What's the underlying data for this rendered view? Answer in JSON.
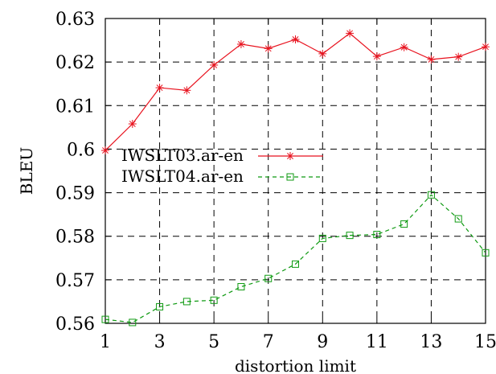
{
  "chart_data": {
    "type": "line",
    "xlabel": "distortion limit",
    "ylabel": "BLEU",
    "xlim": [
      1,
      15
    ],
    "ylim": [
      0.56,
      0.63
    ],
    "xticks": [
      1,
      3,
      5,
      7,
      9,
      11,
      13,
      15
    ],
    "xtick_labels": [
      "1",
      "3",
      "5",
      "7",
      "9",
      "11",
      "13",
      "15"
    ],
    "yticks": [
      0.56,
      0.57,
      0.58,
      0.59,
      0.6,
      0.61,
      0.62,
      0.63
    ],
    "ytick_labels": [
      "0.56",
      "0.57",
      "0.58",
      "0.59",
      "0.6",
      "0.61",
      "0.62",
      "0.63"
    ],
    "grid": true,
    "legend_position": "middle-left",
    "x": [
      1,
      2,
      3,
      4,
      5,
      6,
      7,
      8,
      9,
      10,
      11,
      12,
      13,
      14,
      15
    ],
    "series": [
      {
        "name": "IWSLT03.ar-en",
        "color": "#e8121e",
        "line_style": "solid",
        "marker": "star",
        "values": [
          0.5997,
          0.6058,
          0.6141,
          0.6135,
          0.6193,
          0.6241,
          0.6231,
          0.6252,
          0.6219,
          0.6266,
          0.6213,
          0.6234,
          0.6206,
          0.6212,
          0.6235
        ]
      },
      {
        "name": "IWSLT04.ar-en",
        "color": "#0f9a12",
        "line_style": "dashed",
        "marker": "square",
        "values": [
          0.5609,
          0.5602,
          0.5638,
          0.565,
          0.5653,
          0.5684,
          0.5703,
          0.5736,
          0.5795,
          0.5802,
          0.5804,
          0.5828,
          0.5895,
          0.584,
          0.5762
        ]
      }
    ]
  }
}
